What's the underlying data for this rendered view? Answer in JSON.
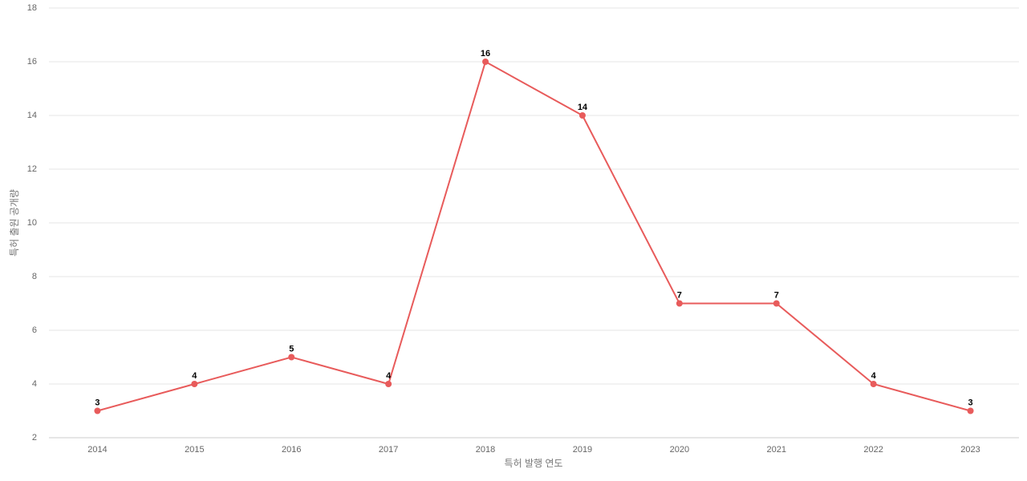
{
  "chart_data": {
    "type": "line",
    "x_label": "특허 발행 연도",
    "y_label": "특허 출원 공개량",
    "categories": [
      "2014",
      "2015",
      "2016",
      "2017",
      "2018",
      "2019",
      "2020",
      "2021",
      "2022",
      "2023"
    ],
    "values": [
      3,
      4,
      5,
      4,
      16,
      14,
      7,
      7,
      4,
      3
    ],
    "color": "#e85b5b",
    "ylim": [
      2,
      18
    ],
    "yticks": [
      2,
      4,
      6,
      8,
      10,
      12,
      14,
      16,
      18
    ],
    "grid": true
  }
}
